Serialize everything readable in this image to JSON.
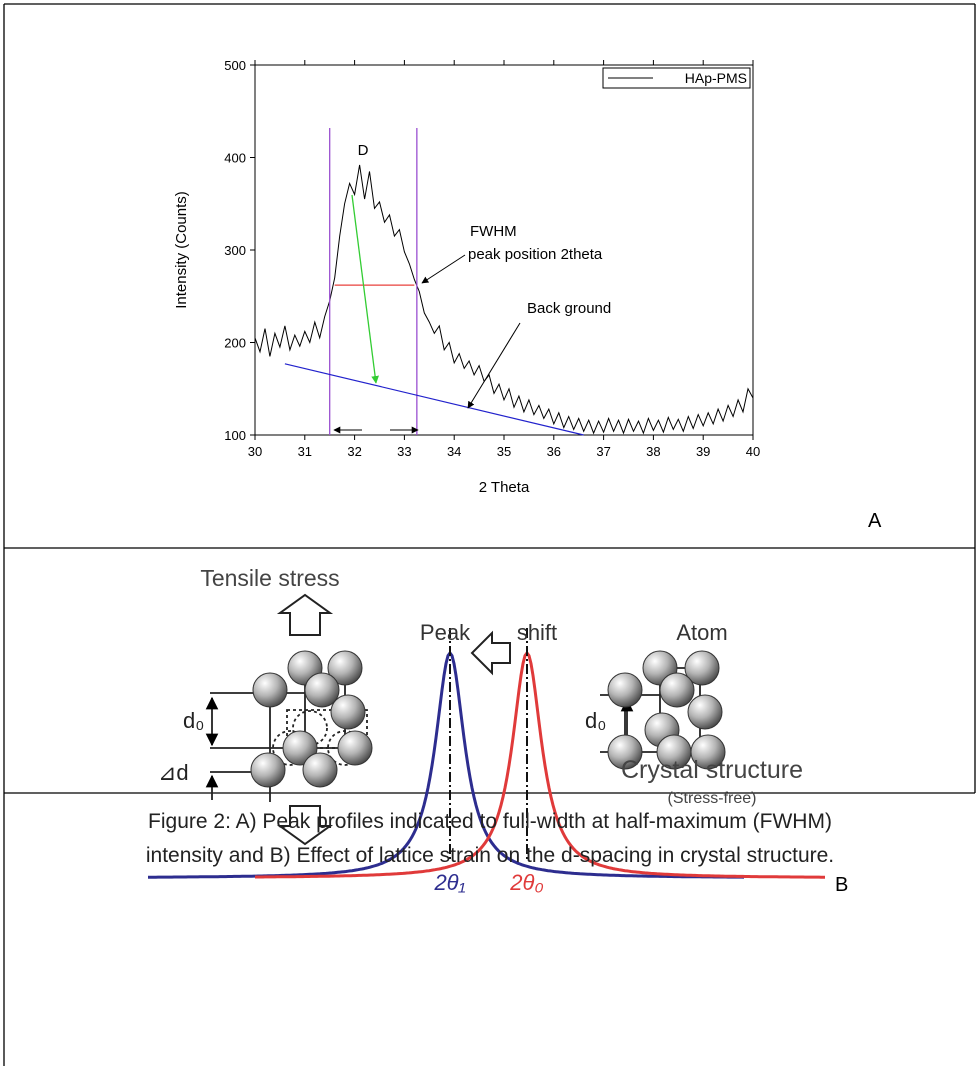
{
  "chart_data": {
    "type": "line",
    "x_label": "2 Theta",
    "y_label": "Intensity (Counts)",
    "x": [
      30.0,
      30.1,
      30.2,
      30.3,
      30.4,
      30.5,
      30.6,
      30.7,
      30.8,
      30.9,
      31.0,
      31.1,
      31.2,
      31.3,
      31.4,
      31.5,
      31.6,
      31.7,
      31.8,
      31.9,
      32.0,
      32.1,
      32.2,
      32.3,
      32.4,
      32.5,
      32.6,
      32.7,
      32.8,
      32.9,
      33.0,
      33.1,
      33.2,
      33.3,
      33.4,
      33.5,
      33.6,
      33.7,
      33.8,
      33.9,
      34.0,
      34.1,
      34.2,
      34.3,
      34.4,
      34.5,
      34.6,
      34.7,
      34.8,
      34.9,
      35.0,
      35.1,
      35.2,
      35.3,
      35.4,
      35.5,
      35.6,
      35.7,
      35.8,
      35.9,
      36.0,
      36.1,
      36.2,
      36.3,
      36.4,
      36.5,
      36.6,
      36.7,
      36.8,
      36.9,
      37.0,
      37.1,
      37.2,
      37.3,
      37.4,
      37.5,
      37.6,
      37.7,
      37.8,
      37.9,
      38.0,
      38.1,
      38.2,
      38.3,
      38.4,
      38.5,
      38.6,
      38.7,
      38.8,
      38.9,
      39.0,
      39.1,
      39.2,
      39.3,
      39.4,
      39.5,
      39.6,
      39.7,
      39.8,
      39.9,
      40.0
    ],
    "series": [
      {
        "name": "HAp-PMS",
        "color": "#000000",
        "values": [
          205,
          190,
          215,
          185,
          210,
          195,
          218,
          192,
          208,
          196,
          212,
          200,
          222,
          205,
          228,
          245,
          270,
          315,
          350,
          372,
          360,
          392,
          355,
          385,
          345,
          352,
          330,
          338,
          315,
          322,
          298,
          285,
          268,
          255,
          232,
          222,
          210,
          218,
          192,
          200,
          178,
          188,
          172,
          180,
          165,
          175,
          158,
          165,
          145,
          155,
          138,
          150,
          130,
          142,
          125,
          138,
          122,
          132,
          118,
          128,
          112,
          124,
          108,
          120,
          106,
          118,
          104,
          116,
          102,
          115,
          103,
          118,
          104,
          116,
          102,
          117,
          104,
          115,
          102,
          118,
          105,
          116,
          103,
          119,
          106,
          117,
          104,
          120,
          107,
          122,
          110,
          124,
          112,
          128,
          115,
          132,
          120,
          138,
          125,
          150,
          140
        ]
      }
    ],
    "xlim": [
      30,
      40
    ],
    "ylim": [
      100,
      500
    ],
    "xticks": [
      30,
      31,
      32,
      33,
      34,
      35,
      36,
      37,
      38,
      39,
      40
    ],
    "yticks": [
      100,
      200,
      300,
      400,
      500
    ],
    "legend": "top-right",
    "vlines": [
      31.5,
      33.25
    ],
    "fwhm": {
      "x": [
        31.6,
        33.2
      ],
      "y": 262,
      "color": "#e8413c"
    },
    "baseline": {
      "x": [
        30.6,
        36.6
      ],
      "y": [
        177,
        100
      ],
      "color": "#2222cc"
    },
    "annotations": [
      "D",
      "FWHM",
      "peak position 2theta",
      "Back ground"
    ]
  },
  "panel_labels": [
    "A",
    "B"
  ],
  "diagram": {
    "tensile": "Tensile stress",
    "peak": "Peak",
    "shift": "shift",
    "atom": "Atom",
    "d0_left": "d₀",
    "delta_d": "⊿d",
    "d0_right": "d₀",
    "crystal": "Crystal  structure",
    "stress_free": "(Stress-free)",
    "theta1": "2θ₁",
    "theta0": "2θ₀"
  },
  "caption": {
    "lines": [
      "Figure 2: A) Peak profiles indicated to full-width at half-maximum (FWHM)",
      "intensity and B) Effect of lattice strain on the d-spacing in crystal structure."
    ]
  }
}
